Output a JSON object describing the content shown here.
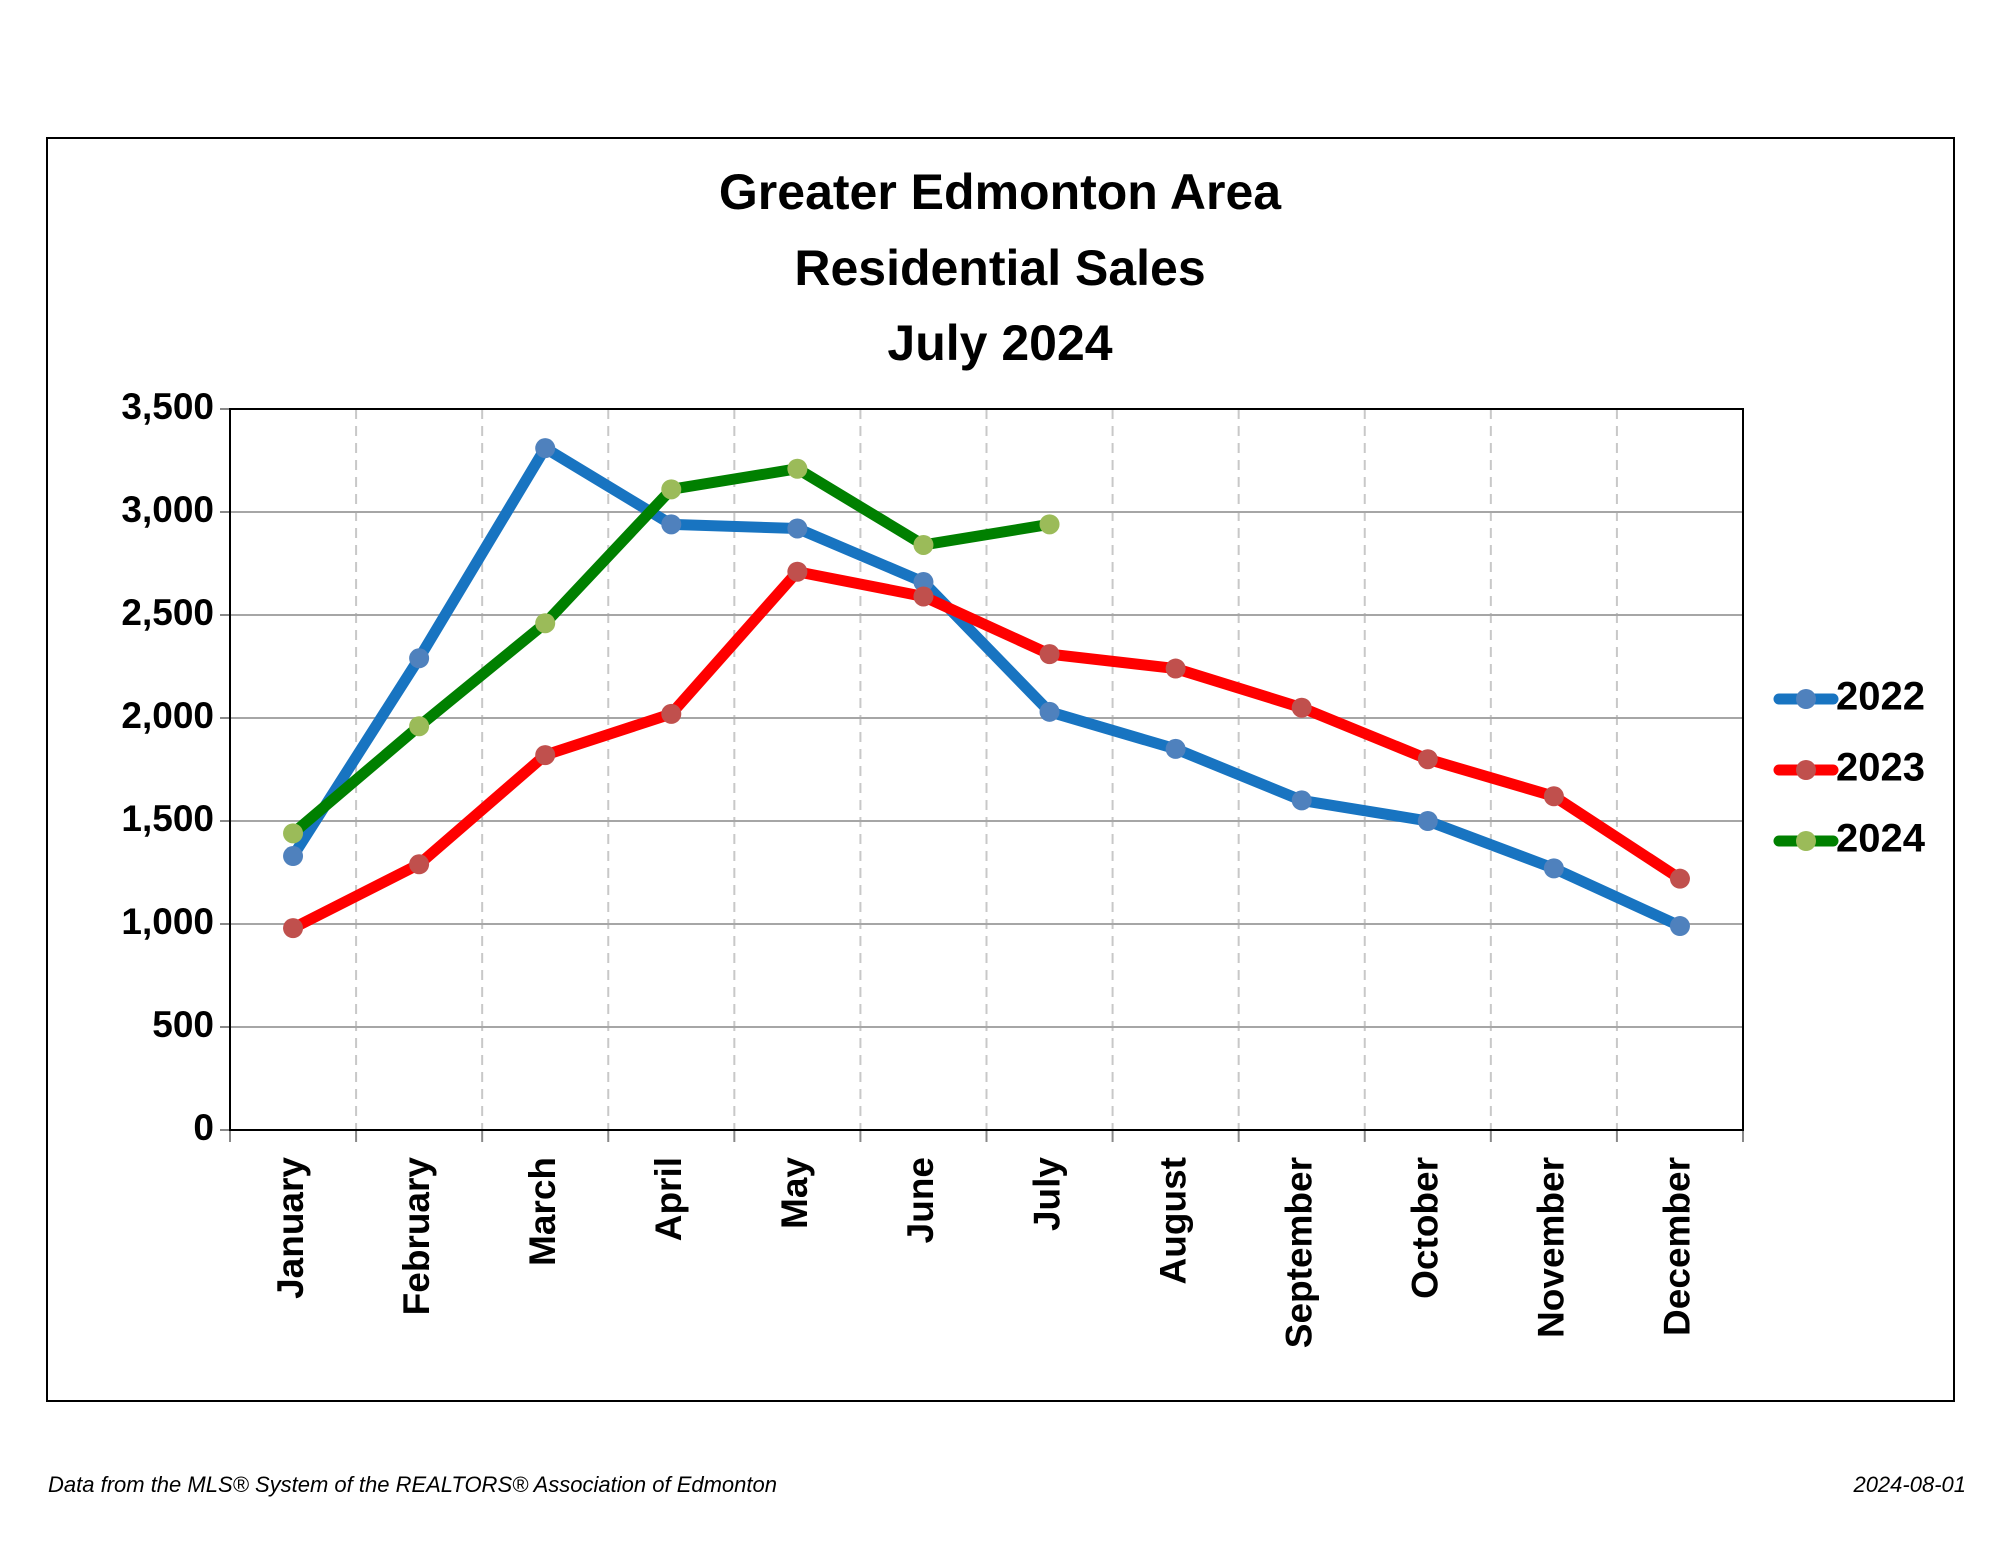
{
  "chart_data": {
    "type": "line",
    "title": [
      "Greater Edmonton Area",
      "Residential Sales",
      "July 2024"
    ],
    "categories": [
      "January",
      "February",
      "March",
      "April",
      "May",
      "June",
      "July",
      "August",
      "September",
      "October",
      "November",
      "December"
    ],
    "series": [
      {
        "name": "2022",
        "color": "#1874c1",
        "marker_color": "#4f81bd",
        "values": [
          1330,
          2290,
          3310,
          2940,
          2920,
          2660,
          2030,
          1850,
          1600,
          1500,
          1270,
          990
        ]
      },
      {
        "name": "2023",
        "color": "#ff0000",
        "marker_color": "#c0504d",
        "values": [
          980,
          1290,
          1820,
          2020,
          2710,
          2590,
          2310,
          2240,
          2050,
          1800,
          1620,
          1220
        ]
      },
      {
        "name": "2024",
        "color": "#008000",
        "marker_color": "#9bbb59",
        "values": [
          1440,
          1960,
          2460,
          3110,
          3210,
          2840,
          2940,
          null,
          null,
          null,
          null,
          null
        ]
      }
    ],
    "ylim": [
      0,
      3500
    ],
    "yticks": [
      0,
      500,
      {
        "value": 1000,
        "label": "1,000"
      },
      {
        "value": 1500,
        "label": "1,500"
      },
      {
        "value": 2000,
        "label": "2,000"
      },
      {
        "value": 2500,
        "label": "2,500"
      },
      {
        "value": 3000,
        "label": "3,000"
      },
      {
        "value": 3500,
        "label": "3,500"
      }
    ],
    "grid": true,
    "legend": "right"
  },
  "footer": {
    "source": "Data from the MLS® System of the REALTORS® Association of Edmonton",
    "date": "2024-08-01"
  }
}
